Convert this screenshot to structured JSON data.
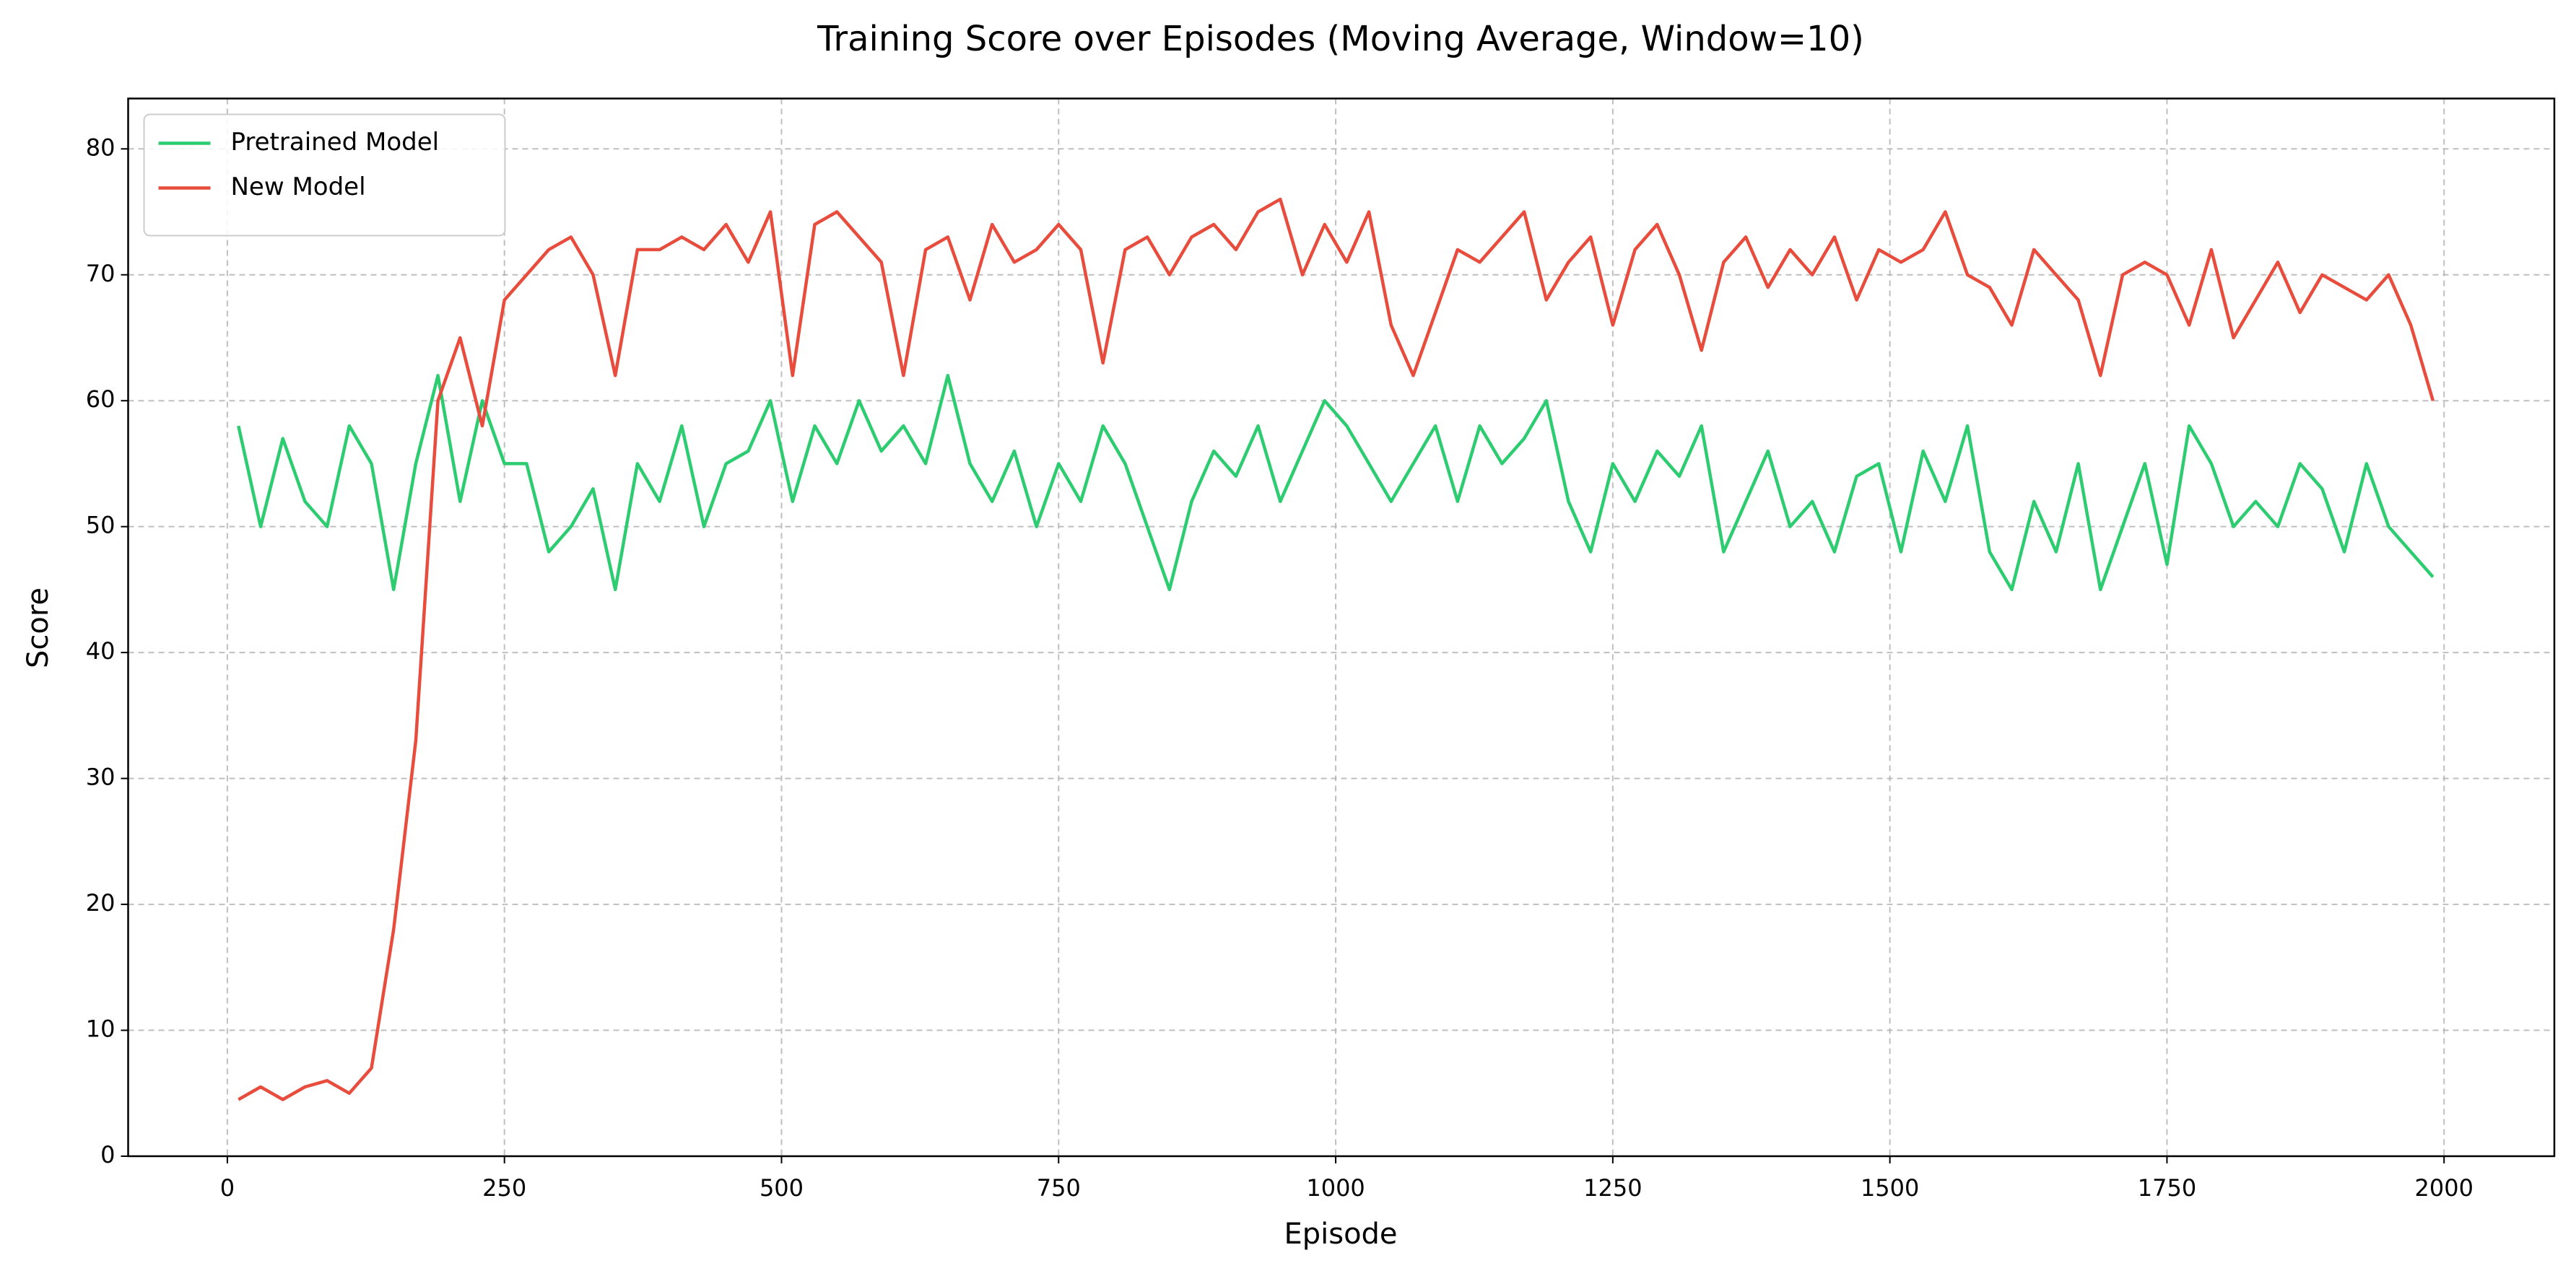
{
  "chart_data": {
    "type": "line",
    "title": "Training Score over Episodes (Moving Average, Window=10)",
    "x_label": "Episode",
    "y_label": "Score",
    "x": [
      10,
      30,
      50,
      70,
      90,
      110,
      130,
      150,
      170,
      190,
      210,
      230,
      250,
      270,
      290,
      310,
      330,
      350,
      370,
      390,
      410,
      430,
      450,
      470,
      490,
      510,
      530,
      550,
      570,
      590,
      610,
      630,
      650,
      670,
      690,
      710,
      730,
      750,
      770,
      790,
      810,
      830,
      850,
      870,
      890,
      910,
      930,
      950,
      970,
      990,
      1010,
      1030,
      1050,
      1070,
      1090,
      1110,
      1130,
      1150,
      1170,
      1190,
      1210,
      1230,
      1250,
      1270,
      1290,
      1310,
      1330,
      1350,
      1370,
      1390,
      1410,
      1430,
      1450,
      1470,
      1490,
      1510,
      1530,
      1550,
      1570,
      1590,
      1610,
      1630,
      1650,
      1670,
      1690,
      1710,
      1730,
      1750,
      1770,
      1790,
      1810,
      1830,
      1850,
      1870,
      1890,
      1910,
      1930,
      1950,
      1970,
      1990
    ],
    "series": [
      {
        "name": "Pretrained Model",
        "color": "#2ecc71",
        "values": [
          58,
          50,
          57,
          52,
          50,
          58,
          55,
          45,
          55,
          62,
          52,
          60,
          55,
          55,
          48,
          50,
          53,
          45,
          55,
          52,
          58,
          50,
          55,
          56,
          60,
          52,
          58,
          55,
          60,
          56,
          58,
          55,
          62,
          55,
          52,
          56,
          50,
          55,
          52,
          58,
          55,
          50,
          45,
          52,
          56,
          54,
          58,
          52,
          56,
          60,
          58,
          55,
          52,
          55,
          58,
          52,
          58,
          55,
          57,
          60,
          52,
          48,
          55,
          52,
          56,
          54,
          58,
          48,
          52,
          56,
          50,
          52,
          48,
          54,
          55,
          48,
          56,
          52,
          58,
          48,
          45,
          52,
          48,
          55,
          45,
          50,
          55,
          47,
          58,
          55,
          50,
          52,
          50,
          55,
          53,
          48,
          55,
          50,
          48,
          46
        ]
      },
      {
        "name": "New Model",
        "color": "#e74c3c",
        "values": [
          4.5,
          5.5,
          4.5,
          5.5,
          6,
          5,
          7,
          18,
          33,
          60,
          65,
          58,
          68,
          70,
          72,
          73,
          70,
          62,
          72,
          72,
          73,
          72,
          74,
          71,
          75,
          62,
          74,
          75,
          73,
          71,
          62,
          72,
          73,
          68,
          74,
          71,
          72,
          74,
          72,
          63,
          72,
          73,
          70,
          73,
          74,
          72,
          75,
          76,
          70,
          74,
          71,
          75,
          66,
          62,
          67,
          72,
          71,
          73,
          75,
          68,
          71,
          73,
          66,
          72,
          74,
          70,
          64,
          71,
          73,
          69,
          72,
          70,
          73,
          68,
          72,
          71,
          72,
          75,
          70,
          69,
          66,
          72,
          70,
          68,
          62,
          70,
          71,
          70,
          66,
          72,
          65,
          68,
          71,
          67,
          70,
          69,
          68,
          70,
          66,
          60
        ]
      }
    ],
    "xlim": [
      -89.5,
      2099.5
    ],
    "ylim": [
      0,
      84
    ],
    "xticks": [
      0,
      250,
      500,
      750,
      1000,
      1250,
      1500,
      1750,
      2000
    ],
    "yticks": [
      0,
      10,
      20,
      30,
      40,
      50,
      60,
      70,
      80
    ],
    "grid": true,
    "legend": "upper left"
  }
}
